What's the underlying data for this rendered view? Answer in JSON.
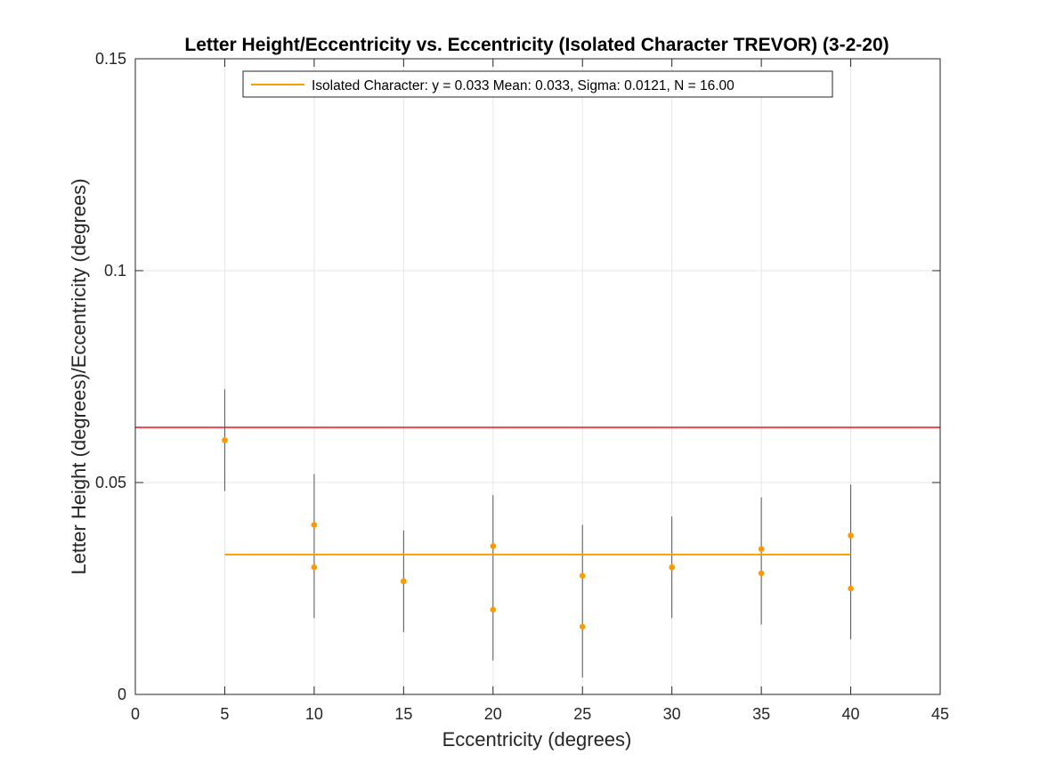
{
  "chart_data": {
    "type": "scatter",
    "title": "Letter Height/Eccentricity vs. Eccentricity (Isolated Character TREVOR) (3-2-20)",
    "xlabel": "Eccentricity (degrees)",
    "ylabel": "Letter Height (degrees)/Eccentricity (degrees)",
    "xlim": [
      0,
      45
    ],
    "ylim": [
      0,
      0.15
    ],
    "xticks": [
      0,
      5,
      10,
      15,
      20,
      25,
      30,
      35,
      40,
      45
    ],
    "xtick_labels": [
      "0",
      "5",
      "10",
      "15",
      "20",
      "25",
      "30",
      "35",
      "40",
      "45"
    ],
    "yticks": [
      0,
      0.05,
      0.1,
      0.15
    ],
    "ytick_labels": [
      "0",
      "0.05",
      "0.1",
      "0.15"
    ],
    "grid": true,
    "legend_position": "top",
    "legend": [
      "Isolated Character: y = 0.033 Mean: 0.033, Sigma: 0.0121, N = 16.00"
    ],
    "points": [
      {
        "x": 5,
        "y": 0.06
      },
      {
        "x": 5,
        "y": 0.06
      },
      {
        "x": 10,
        "y": 0.04
      },
      {
        "x": 10,
        "y": 0.03
      },
      {
        "x": 15,
        "y": 0.0267
      },
      {
        "x": 15,
        "y": 0.0267
      },
      {
        "x": 20,
        "y": 0.035
      },
      {
        "x": 20,
        "y": 0.02
      },
      {
        "x": 25,
        "y": 0.028
      },
      {
        "x": 25,
        "y": 0.016
      },
      {
        "x": 30,
        "y": 0.03
      },
      {
        "x": 30,
        "y": 0.03
      },
      {
        "x": 35,
        "y": 0.0343
      },
      {
        "x": 35,
        "y": 0.0286
      },
      {
        "x": 40,
        "y": 0.0375
      },
      {
        "x": 40,
        "y": 0.025
      }
    ],
    "error_bars": [
      {
        "x": 5,
        "low": 0.048,
        "high": 0.072
      },
      {
        "x": 10,
        "low": 0.018,
        "high": 0.052
      },
      {
        "x": 15,
        "low": 0.0147,
        "high": 0.0387
      },
      {
        "x": 20,
        "low": 0.008,
        "high": 0.047
      },
      {
        "x": 25,
        "low": 0.004,
        "high": 0.04
      },
      {
        "x": 30,
        "low": 0.018,
        "high": 0.042
      },
      {
        "x": 35,
        "low": 0.0165,
        "high": 0.0465
      },
      {
        "x": 40,
        "low": 0.013,
        "high": 0.0495
      }
    ],
    "fit_line": {
      "x": [
        5,
        40
      ],
      "y": 0.033
    },
    "reference_line": {
      "y": 0.063
    },
    "colors": {
      "points": "#ff9900",
      "fit_line": "#f5a000",
      "reference_line": "#e8484f",
      "error_bars": "#555555",
      "grid": "#e6e6e6",
      "axes": "#262626"
    }
  }
}
